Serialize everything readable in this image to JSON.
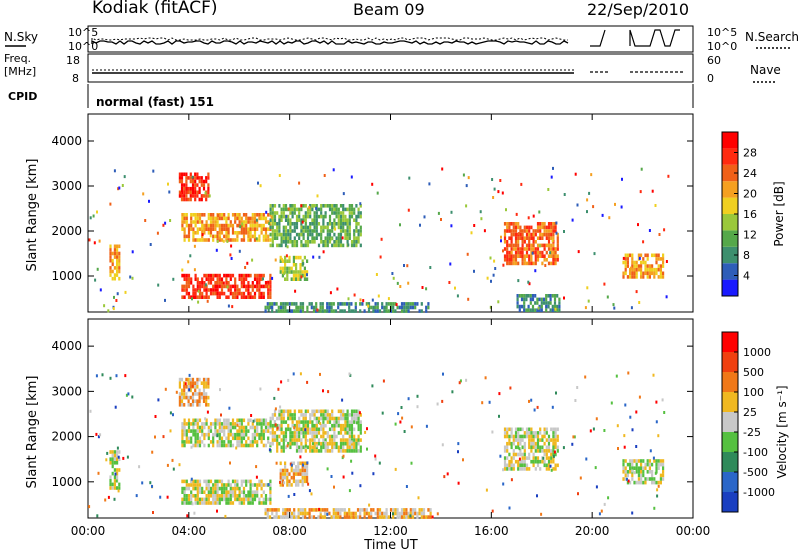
{
  "header": {
    "station": "Kodiak (fitACF)",
    "beam": "Beam 09",
    "date": "22/Sep/2010"
  },
  "status_panel": {
    "left_labels": {
      "nsky": "N.Sky",
      "freq": "Freq.",
      "freq_unit": "[MHz]",
      "cpid": "CPID"
    },
    "right_labels": {
      "nsearch": "N.Search",
      "nave": "Nave"
    },
    "noise_ticks_left": [
      "10^5",
      "10^0"
    ],
    "noise_ticks_right": [
      "10^5",
      "10^0"
    ],
    "freq_ticks": [
      "18",
      "8"
    ],
    "nave_ticks": [
      "60",
      "0"
    ],
    "cpid_text": "normal (fast) 151"
  },
  "chart_data": [
    {
      "type": "heatmap",
      "name": "power",
      "ylabel": "Slant Range [km]",
      "xlabel": "",
      "x_ticks": [
        "00:00",
        "04:00",
        "08:00",
        "12:00",
        "16:00",
        "20:00",
        "00:00"
      ],
      "y_ticks": [
        1000,
        2000,
        3000,
        4000
      ],
      "xlim": [
        0,
        24
      ],
      "ylim": [
        200,
        4600
      ],
      "colorbar": {
        "label": "Power [dB]",
        "ticks": [
          4,
          8,
          12,
          16,
          20,
          24,
          28
        ],
        "colors": [
          "#1a1aff",
          "#2e5db8",
          "#3d8f6e",
          "#55a84a",
          "#9ac83a",
          "#f0d020",
          "#f5a020",
          "#f06018",
          "#ff2a10",
          "#ff0000"
        ]
      },
      "regions": [
        {
          "t0": 0.85,
          "t1": 1.2,
          "r0": 900,
          "r1": 1700,
          "level": 6
        },
        {
          "t0": 3.6,
          "t1": 4.8,
          "r0": 2700,
          "r1": 3300,
          "level": 8
        },
        {
          "t0": 3.7,
          "t1": 7.2,
          "r0": 1800,
          "r1": 2400,
          "level": 6
        },
        {
          "t0": 3.7,
          "t1": 7.2,
          "r0": 550,
          "r1": 1050,
          "level": 8
        },
        {
          "t0": 7.2,
          "t1": 10.8,
          "r0": 1700,
          "r1": 2600,
          "level": 3
        },
        {
          "t0": 7.6,
          "t1": 8.7,
          "r0": 950,
          "r1": 1450,
          "level": 4
        },
        {
          "t0": 7.0,
          "t1": 13.6,
          "r0": 230,
          "r1": 420,
          "level": 2
        },
        {
          "t0": 16.5,
          "t1": 18.6,
          "r0": 1300,
          "r1": 2200,
          "level": 7
        },
        {
          "t0": 17.0,
          "t1": 18.7,
          "r0": 230,
          "r1": 600,
          "level": 2
        },
        {
          "t0": 21.2,
          "t1": 22.8,
          "r0": 1000,
          "r1": 1500,
          "level": 6
        }
      ]
    },
    {
      "type": "heatmap",
      "name": "velocity",
      "ylabel": "Slant Range [km]",
      "xlabel": "Time UT",
      "x_ticks": [
        "00:00",
        "04:00",
        "08:00",
        "12:00",
        "16:00",
        "20:00",
        "00:00"
      ],
      "y_ticks": [
        1000,
        2000,
        3000,
        4000
      ],
      "xlim": [
        0,
        24
      ],
      "ylim": [
        200,
        4600
      ],
      "colorbar": {
        "label": "Velocity [m s⁻¹]",
        "ticks": [
          1000,
          500,
          100,
          25,
          -25,
          -100,
          -500,
          -1000
        ],
        "colors": [
          "#1a3fc0",
          "#2a66c8",
          "#2f8a5a",
          "#55c040",
          "#c8c8c8",
          "#f0b820",
          "#f07818",
          "#f04010",
          "#ff0000"
        ]
      },
      "regions": [
        {
          "t0": 0.85,
          "t1": 1.2,
          "r0": 900,
          "r1": 1700,
          "level": 4
        },
        {
          "t0": 3.6,
          "t1": 4.8,
          "r0": 2700,
          "r1": 3300,
          "level": 5
        },
        {
          "t0": 3.7,
          "t1": 7.2,
          "r0": 1800,
          "r1": 2400,
          "level": 4
        },
        {
          "t0": 3.7,
          "t1": 7.2,
          "r0": 550,
          "r1": 1050,
          "level": 4
        },
        {
          "t0": 7.2,
          "t1": 10.8,
          "r0": 1700,
          "r1": 2600,
          "level": 4
        },
        {
          "t0": 7.6,
          "t1": 8.7,
          "r0": 950,
          "r1": 1450,
          "level": 5
        },
        {
          "t0": 7.0,
          "t1": 13.6,
          "r0": 230,
          "r1": 420,
          "level": 5
        },
        {
          "t0": 16.5,
          "t1": 18.6,
          "r0": 1300,
          "r1": 2200,
          "level": 4
        },
        {
          "t0": 21.2,
          "t1": 22.8,
          "r0": 1000,
          "r1": 1500,
          "level": 4
        }
      ]
    }
  ]
}
